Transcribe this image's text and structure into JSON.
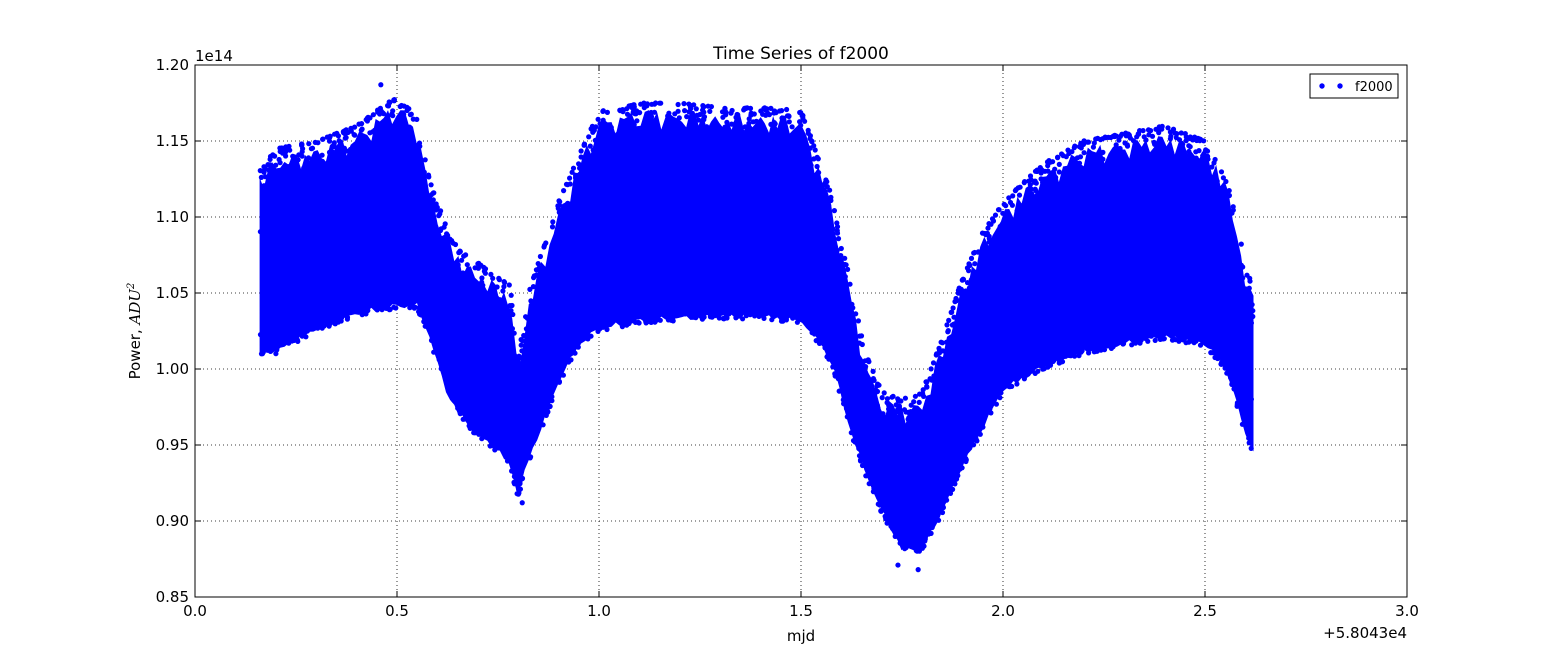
{
  "chart_data": {
    "type": "scatter",
    "title": "Time Series of f2000",
    "xlabel": "mjd",
    "ylabel": "Power, ADU²",
    "ylabel_plain": "Power, ",
    "ylabel_math": "ADU",
    "ylabel_sup": "2",
    "x_offset_label": "+5.8043e4",
    "y_scale_label": "1e14",
    "xlim": [
      0.0,
      3.0
    ],
    "ylim": [
      0.85,
      1.2
    ],
    "x_ticks": [
      0.0,
      0.5,
      1.0,
      1.5,
      2.0,
      2.5,
      3.0
    ],
    "x_tick_labels": [
      "0.0",
      "0.5",
      "1.0",
      "1.5",
      "2.0",
      "2.5",
      "3.0"
    ],
    "y_ticks": [
      0.85,
      0.9,
      0.95,
      1.0,
      1.05,
      1.1,
      1.15,
      1.2
    ],
    "y_tick_labels": [
      "0.85",
      "0.90",
      "0.95",
      "1.00",
      "1.05",
      "1.10",
      "1.15",
      "1.20"
    ],
    "grid": true,
    "legend_position": "top-right",
    "series": [
      {
        "name": "f2000",
        "color": "#0000ff",
        "marker": "circle",
        "envelope": {
          "x": [
            0.16,
            0.2,
            0.3,
            0.4,
            0.5,
            0.55,
            0.58,
            0.62,
            0.65,
            0.7,
            0.75,
            0.78,
            0.8,
            0.82,
            0.85,
            0.9,
            0.95,
            1.0,
            1.1,
            1.2,
            1.3,
            1.4,
            1.5,
            1.55,
            1.58,
            1.62,
            1.66,
            1.7,
            1.75,
            1.8,
            1.85,
            1.9,
            1.95,
            2.0,
            2.1,
            2.2,
            2.3,
            2.4,
            2.5,
            2.55,
            2.58,
            2.6,
            2.62
          ],
          "lower": [
            1.01,
            1.01,
            1.025,
            1.035,
            1.04,
            1.04,
            1.02,
            0.985,
            0.97,
            0.955,
            0.945,
            0.935,
            0.915,
            0.935,
            0.955,
            0.99,
            1.015,
            1.025,
            1.03,
            1.032,
            1.033,
            1.033,
            1.03,
            1.015,
            1.0,
            0.96,
            0.93,
            0.905,
            0.88,
            0.88,
            0.905,
            0.935,
            0.96,
            0.985,
            1.0,
            1.01,
            1.015,
            1.02,
            1.015,
            1.0,
            0.975,
            0.955,
            0.945
          ],
          "upper": [
            1.13,
            1.145,
            1.15,
            1.16,
            1.18,
            1.165,
            1.125,
            1.095,
            1.08,
            1.07,
            1.06,
            1.055,
            1.005,
            1.045,
            1.07,
            1.11,
            1.14,
            1.17,
            1.175,
            1.175,
            1.172,
            1.172,
            1.17,
            1.135,
            1.11,
            1.06,
            1.01,
            0.985,
            0.98,
            0.985,
            1.02,
            1.06,
            1.09,
            1.11,
            1.135,
            1.15,
            1.155,
            1.16,
            1.15,
            1.13,
            1.1,
            1.065,
            1.055
          ]
        },
        "min": 0.868,
        "max": 1.187,
        "n_display_points": 2400
      }
    ]
  }
}
